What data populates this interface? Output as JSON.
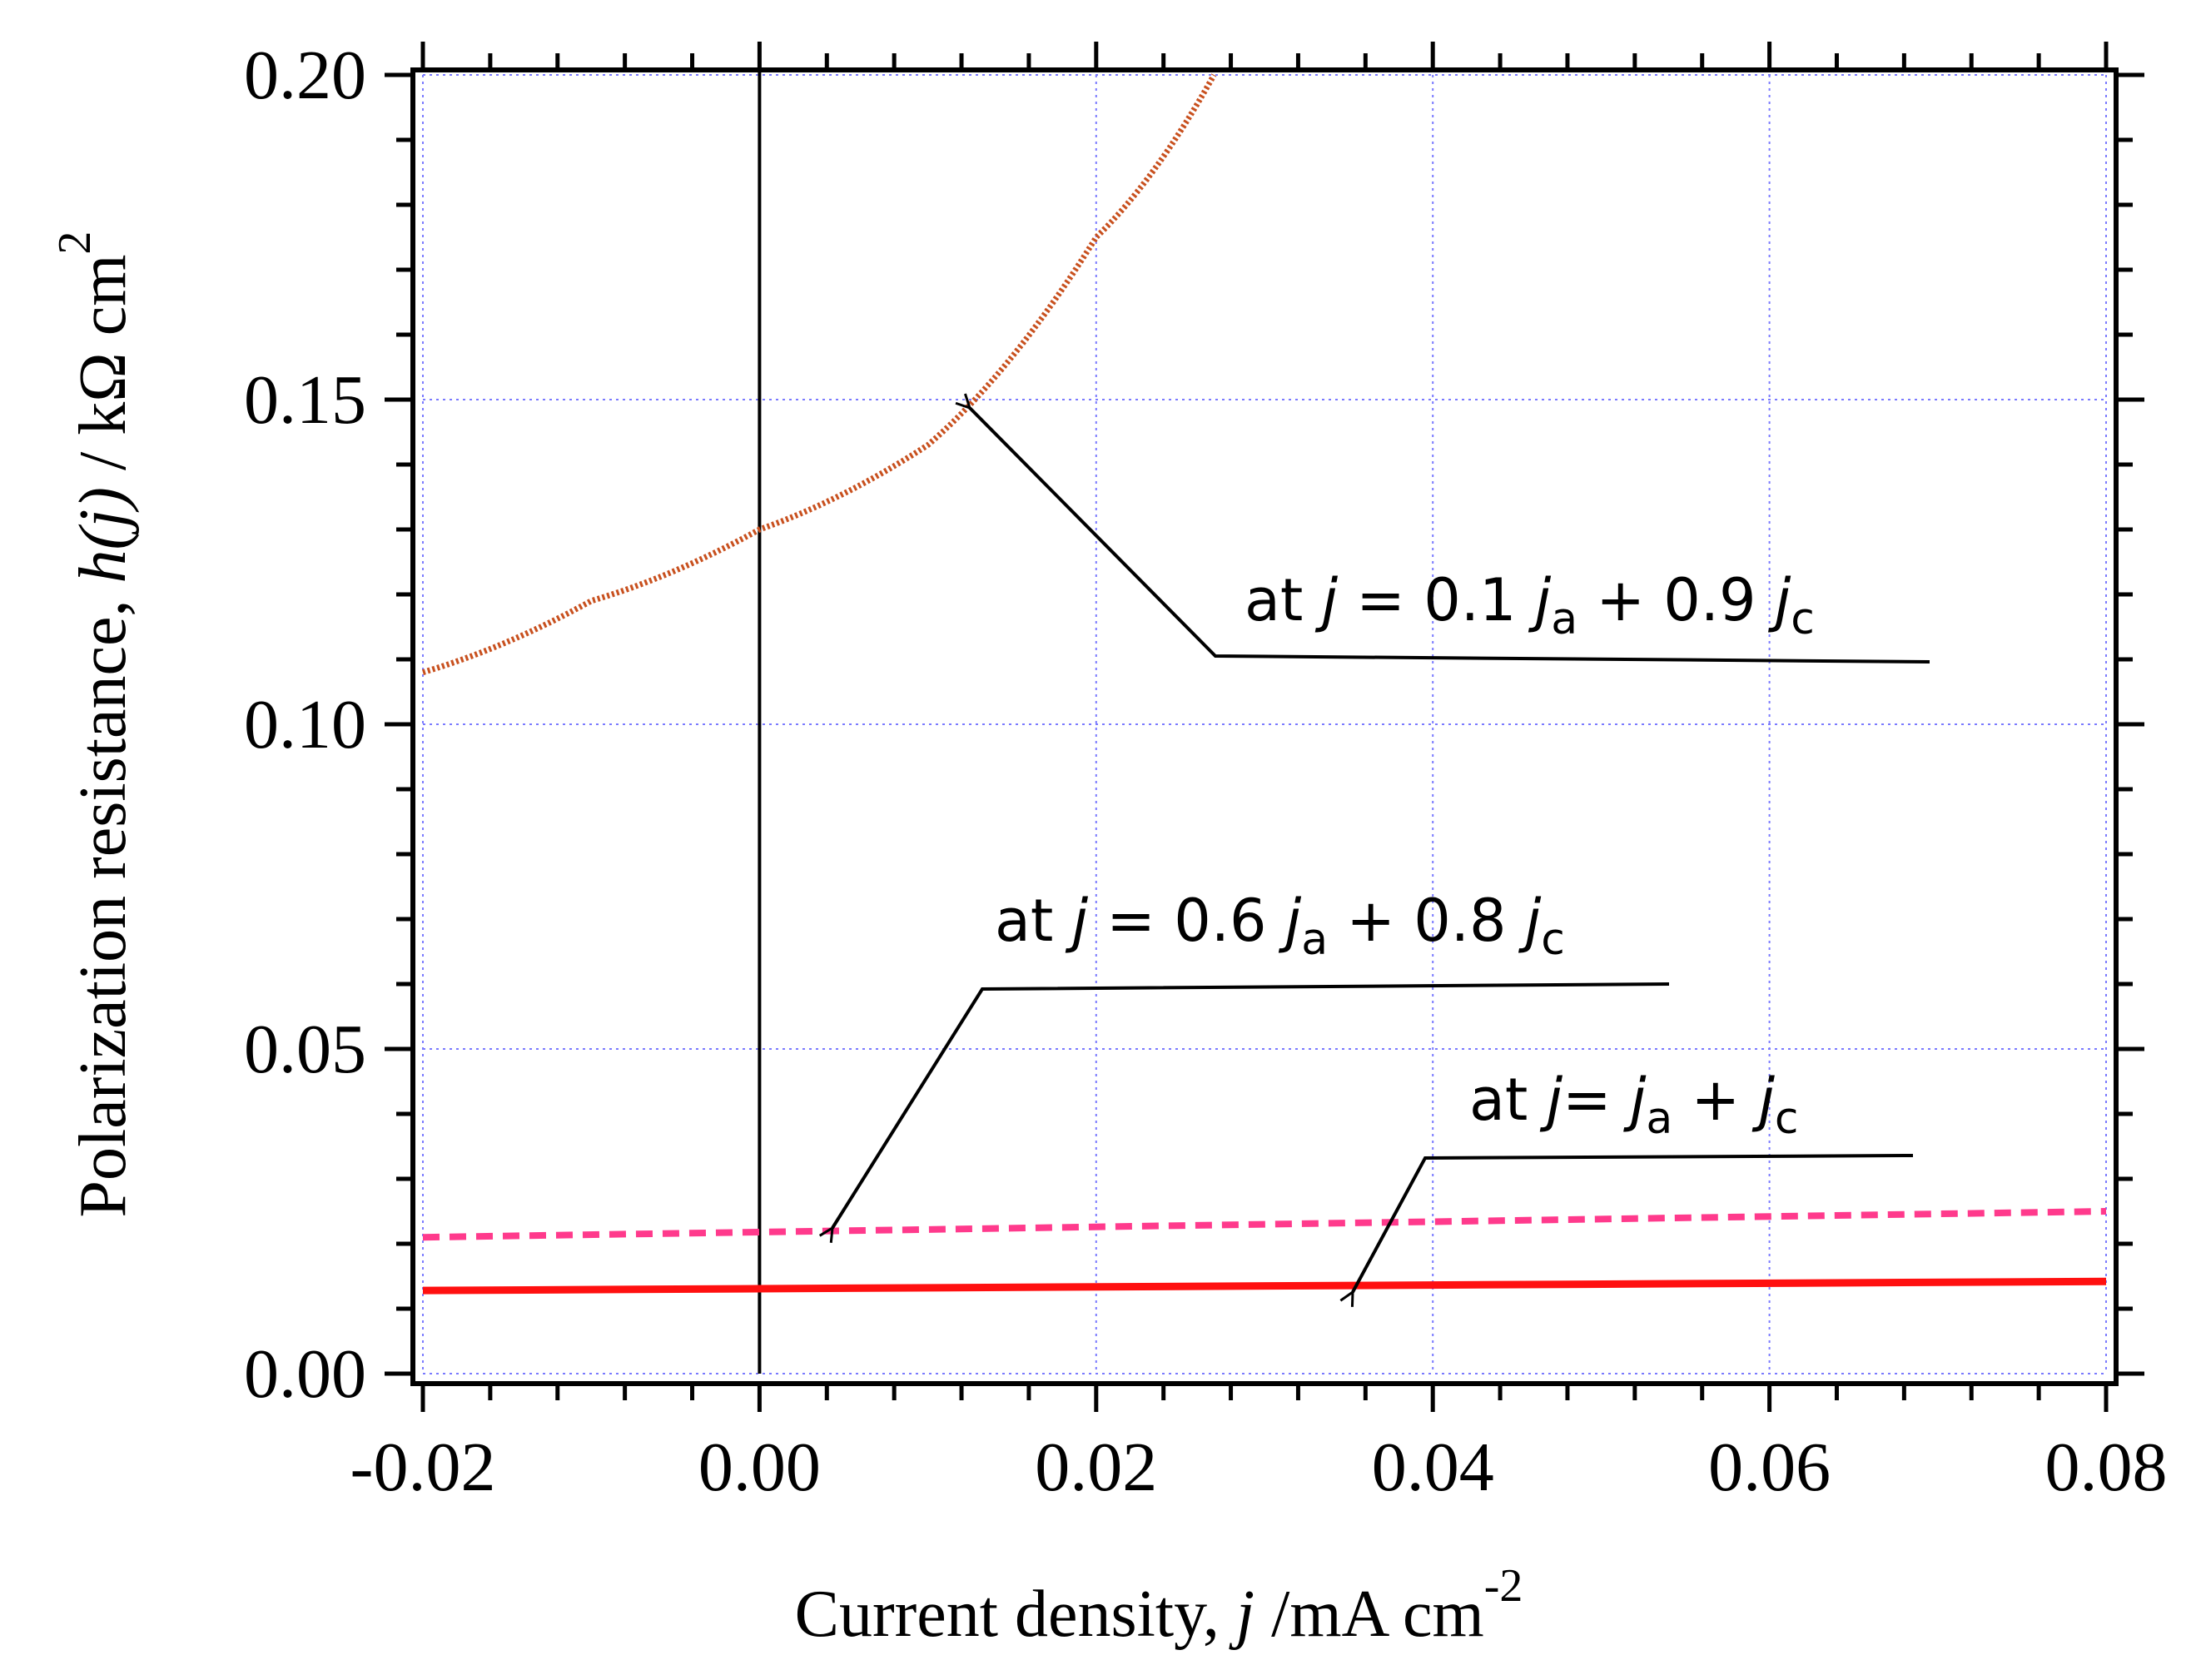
{
  "chart_data": {
    "type": "line",
    "xlabel_prefix": "Current density, ",
    "xlabel_var": "j",
    "xlabel_unit": " /mA cm",
    "xlabel_sup": "-2",
    "ylabel_prefix": "Polarization resistance, ",
    "ylabel_var": "h(j)",
    "ylabel_unit": " / kΩ cm",
    "ylabel_sup": "2",
    "xlim": [
      -0.02,
      0.08
    ],
    "ylim": [
      0.0,
      0.2
    ],
    "x_ticks": [
      "-0.02",
      "0.00",
      "0.02",
      "0.04",
      "0.06",
      "0.08"
    ],
    "x_tick_values": [
      -0.02,
      0.0,
      0.02,
      0.04,
      0.06,
      0.08
    ],
    "y_ticks": [
      "0.00",
      "0.05",
      "0.10",
      "0.15",
      "0.20"
    ],
    "y_tick_values": [
      0.0,
      0.05,
      0.1,
      0.15,
      0.2
    ],
    "grid": true,
    "vertical_line_x": 0.0,
    "series": [
      {
        "name": "at j = 0.1 ja + 0.9 jc",
        "style": "dotted",
        "color": "#c8501e",
        "x": [
          -0.02,
          -0.01,
          0.0,
          0.01,
          0.02,
          0.027
        ],
        "y": [
          0.108,
          0.119,
          0.13,
          0.143,
          0.175,
          0.2
        ]
      },
      {
        "name": "at j = 0.6 ja + 0.8 jc",
        "style": "dashed",
        "color": "#ff3a8c",
        "x": [
          -0.02,
          0.08
        ],
        "y": [
          0.021,
          0.025
        ]
      },
      {
        "name": "at j = ja + jc",
        "style": "solid",
        "color": "#ff1010",
        "x": [
          -0.02,
          0.08
        ],
        "y": [
          0.0128,
          0.0142
        ]
      }
    ],
    "annotations": [
      {
        "prefix": "at ",
        "var": "j",
        "mid": " = 0.1 ",
        "var2": "j",
        "sub2": "a",
        "mid2": " + 0.9 ",
        "var3": "j",
        "sub3": "c"
      },
      {
        "prefix": "at ",
        "var": "j",
        "mid": " = 0.6 ",
        "var2": "j",
        "sub2": "a",
        "mid2": " + 0.8 ",
        "var3": "j",
        "sub3": "c"
      },
      {
        "prefix": "at ",
        "var": "j",
        "mid": "= ",
        "var2": "j",
        "sub2": "a",
        "mid2": " + ",
        "var3": "j",
        "sub3": "c"
      }
    ]
  }
}
